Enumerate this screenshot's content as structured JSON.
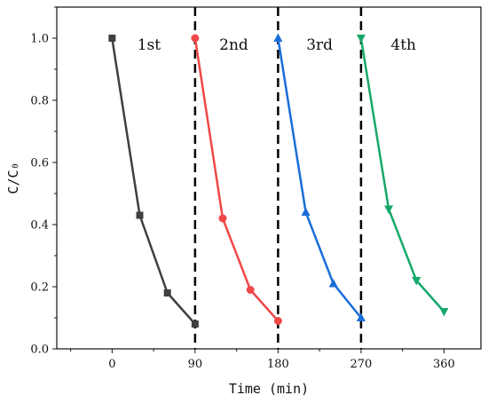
{
  "chart_data": {
    "type": "line",
    "xlabel": "Time (min)",
    "ylabel": "C/C₀",
    "xlim": [
      -60,
      400
    ],
    "ylim": [
      0,
      1.1
    ],
    "xticks": [
      0,
      90,
      180,
      270,
      360
    ],
    "yticks": [
      0.0,
      0.2,
      0.4,
      0.6,
      0.8,
      1.0
    ],
    "xtick_labels": [
      "0",
      "90",
      "180",
      "270",
      "360"
    ],
    "ytick_labels": [
      "0.0",
      "0.2",
      "0.4",
      "0.6",
      "0.8",
      "1.0"
    ],
    "grid": false,
    "dividers_x": [
      90,
      180,
      270
    ],
    "cycle_labels": [
      {
        "text": "1st",
        "x": 40,
        "y": 0.98
      },
      {
        "text": "2nd",
        "x": 132,
        "y": 0.98
      },
      {
        "text": "3rd",
        "x": 225,
        "y": 0.98
      },
      {
        "text": "4th",
        "x": 316,
        "y": 0.98
      }
    ],
    "series": [
      {
        "color": "#3f3f3f",
        "marker": "square",
        "x": [
          0,
          30,
          60,
          90
        ],
        "y": [
          1.0,
          0.43,
          0.18,
          0.08
        ]
      },
      {
        "color": "#f04848",
        "marker": "circle",
        "x": [
          90,
          120,
          150,
          180
        ],
        "y": [
          1.0,
          0.42,
          0.19,
          0.09
        ]
      },
      {
        "color": "#1a6ed8",
        "marker": "triangle-up",
        "x": [
          180,
          210,
          240,
          270
        ],
        "y": [
          1.0,
          0.44,
          0.21,
          0.1
        ]
      },
      {
        "color": "#17a86a",
        "marker": "triangle-down",
        "x": [
          270,
          300,
          330,
          360
        ],
        "y": [
          1.0,
          0.45,
          0.22,
          0.12
        ]
      }
    ]
  }
}
